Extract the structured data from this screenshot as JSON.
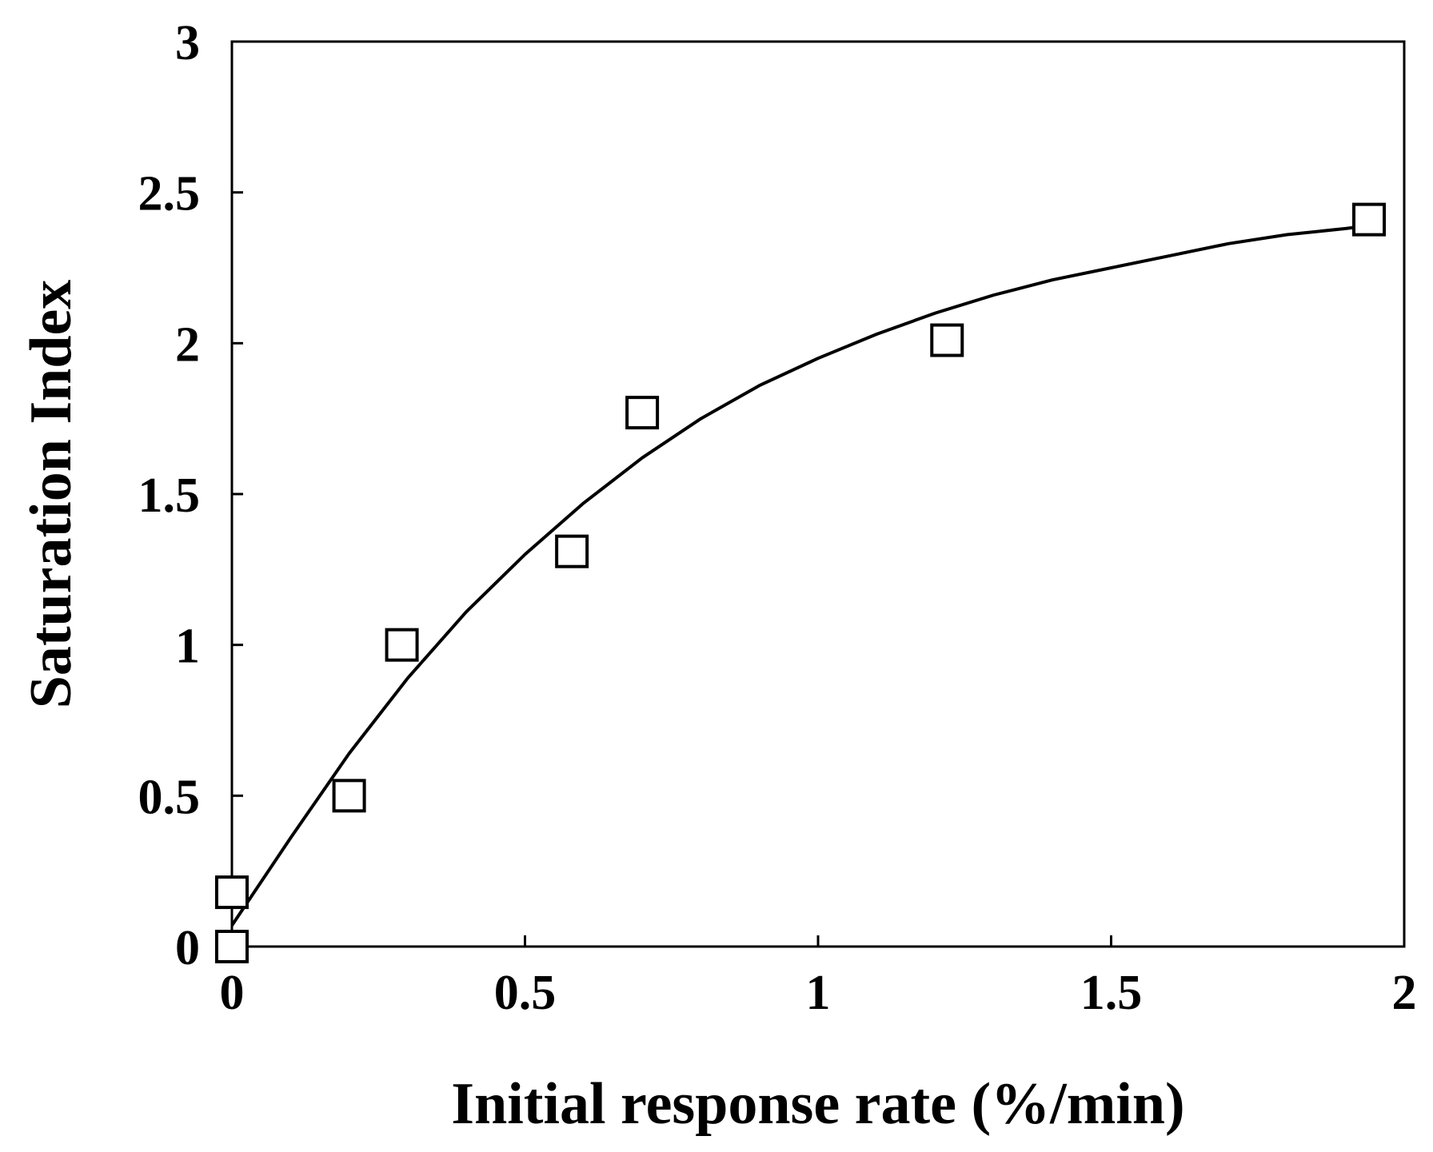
{
  "chart_data": {
    "type": "scatter",
    "title": "",
    "xlabel": "Initial response rate (%/min)",
    "ylabel": "Saturation Index",
    "xlim": [
      0,
      2
    ],
    "ylim": [
      0,
      3
    ],
    "xticks": [
      0,
      0.5,
      1,
      1.5,
      2
    ],
    "yticks": [
      0,
      0.5,
      1,
      1.5,
      2,
      2.5,
      3
    ],
    "xtick_labels": [
      "0",
      "0.5",
      "1",
      "1.5",
      "2"
    ],
    "ytick_labels": [
      "0",
      "0.5",
      "1",
      "1.5",
      "2",
      "2.5",
      "3"
    ],
    "grid": false,
    "legend": "none",
    "series": [
      {
        "name": "data",
        "marker": "open-square",
        "points": [
          {
            "x": 0.0,
            "y": 0.0
          },
          {
            "x": 0.0,
            "y": 0.18
          },
          {
            "x": 0.2,
            "y": 0.5
          },
          {
            "x": 0.29,
            "y": 1.0
          },
          {
            "x": 0.58,
            "y": 1.31
          },
          {
            "x": 0.7,
            "y": 1.77
          },
          {
            "x": 1.22,
            "y": 2.01
          },
          {
            "x": 1.94,
            "y": 2.41
          }
        ]
      },
      {
        "name": "fit",
        "style": "line",
        "points": [
          {
            "x": 0.0,
            "y": 0.07
          },
          {
            "x": 0.1,
            "y": 0.36
          },
          {
            "x": 0.2,
            "y": 0.64
          },
          {
            "x": 0.3,
            "y": 0.89
          },
          {
            "x": 0.4,
            "y": 1.11
          },
          {
            "x": 0.5,
            "y": 1.3
          },
          {
            "x": 0.6,
            "y": 1.47
          },
          {
            "x": 0.7,
            "y": 1.62
          },
          {
            "x": 0.8,
            "y": 1.75
          },
          {
            "x": 0.9,
            "y": 1.86
          },
          {
            "x": 1.0,
            "y": 1.95
          },
          {
            "x": 1.1,
            "y": 2.03
          },
          {
            "x": 1.2,
            "y": 2.1
          },
          {
            "x": 1.3,
            "y": 2.16
          },
          {
            "x": 1.4,
            "y": 2.21
          },
          {
            "x": 1.5,
            "y": 2.25
          },
          {
            "x": 1.6,
            "y": 2.29
          },
          {
            "x": 1.7,
            "y": 2.33
          },
          {
            "x": 1.8,
            "y": 2.36
          },
          {
            "x": 1.9,
            "y": 2.38
          },
          {
            "x": 1.94,
            "y": 2.39
          }
        ]
      }
    ]
  }
}
